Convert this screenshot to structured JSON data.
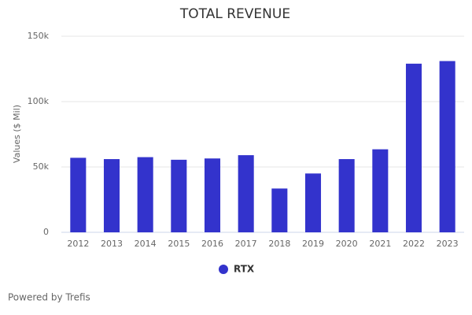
{
  "chart_data": {
    "type": "bar",
    "title": "TOTAL REVENUE",
    "y_label": "Values ($ Mil)",
    "categories": [
      "2012",
      "2013",
      "2014",
      "2015",
      "2016",
      "2017",
      "2018",
      "2019",
      "2020",
      "2021",
      "2022",
      "2023"
    ],
    "series": [
      {
        "name": "RTX",
        "color": "#3333cc",
        "values": [
          57000,
          56000,
          57500,
          55500,
          56500,
          59000,
          33500,
          45000,
          56000,
          63500,
          129000,
          131000
        ]
      }
    ],
    "ylim": [
      0,
      150000
    ],
    "yticks": [
      0,
      {
        "value": 50000,
        "label": "50k"
      },
      {
        "value": 100000,
        "label": "100k"
      },
      {
        "value": 150000,
        "label": "150k"
      }
    ],
    "grid": true,
    "legend": "bottom"
  },
  "footer": "Powered by Trefis"
}
